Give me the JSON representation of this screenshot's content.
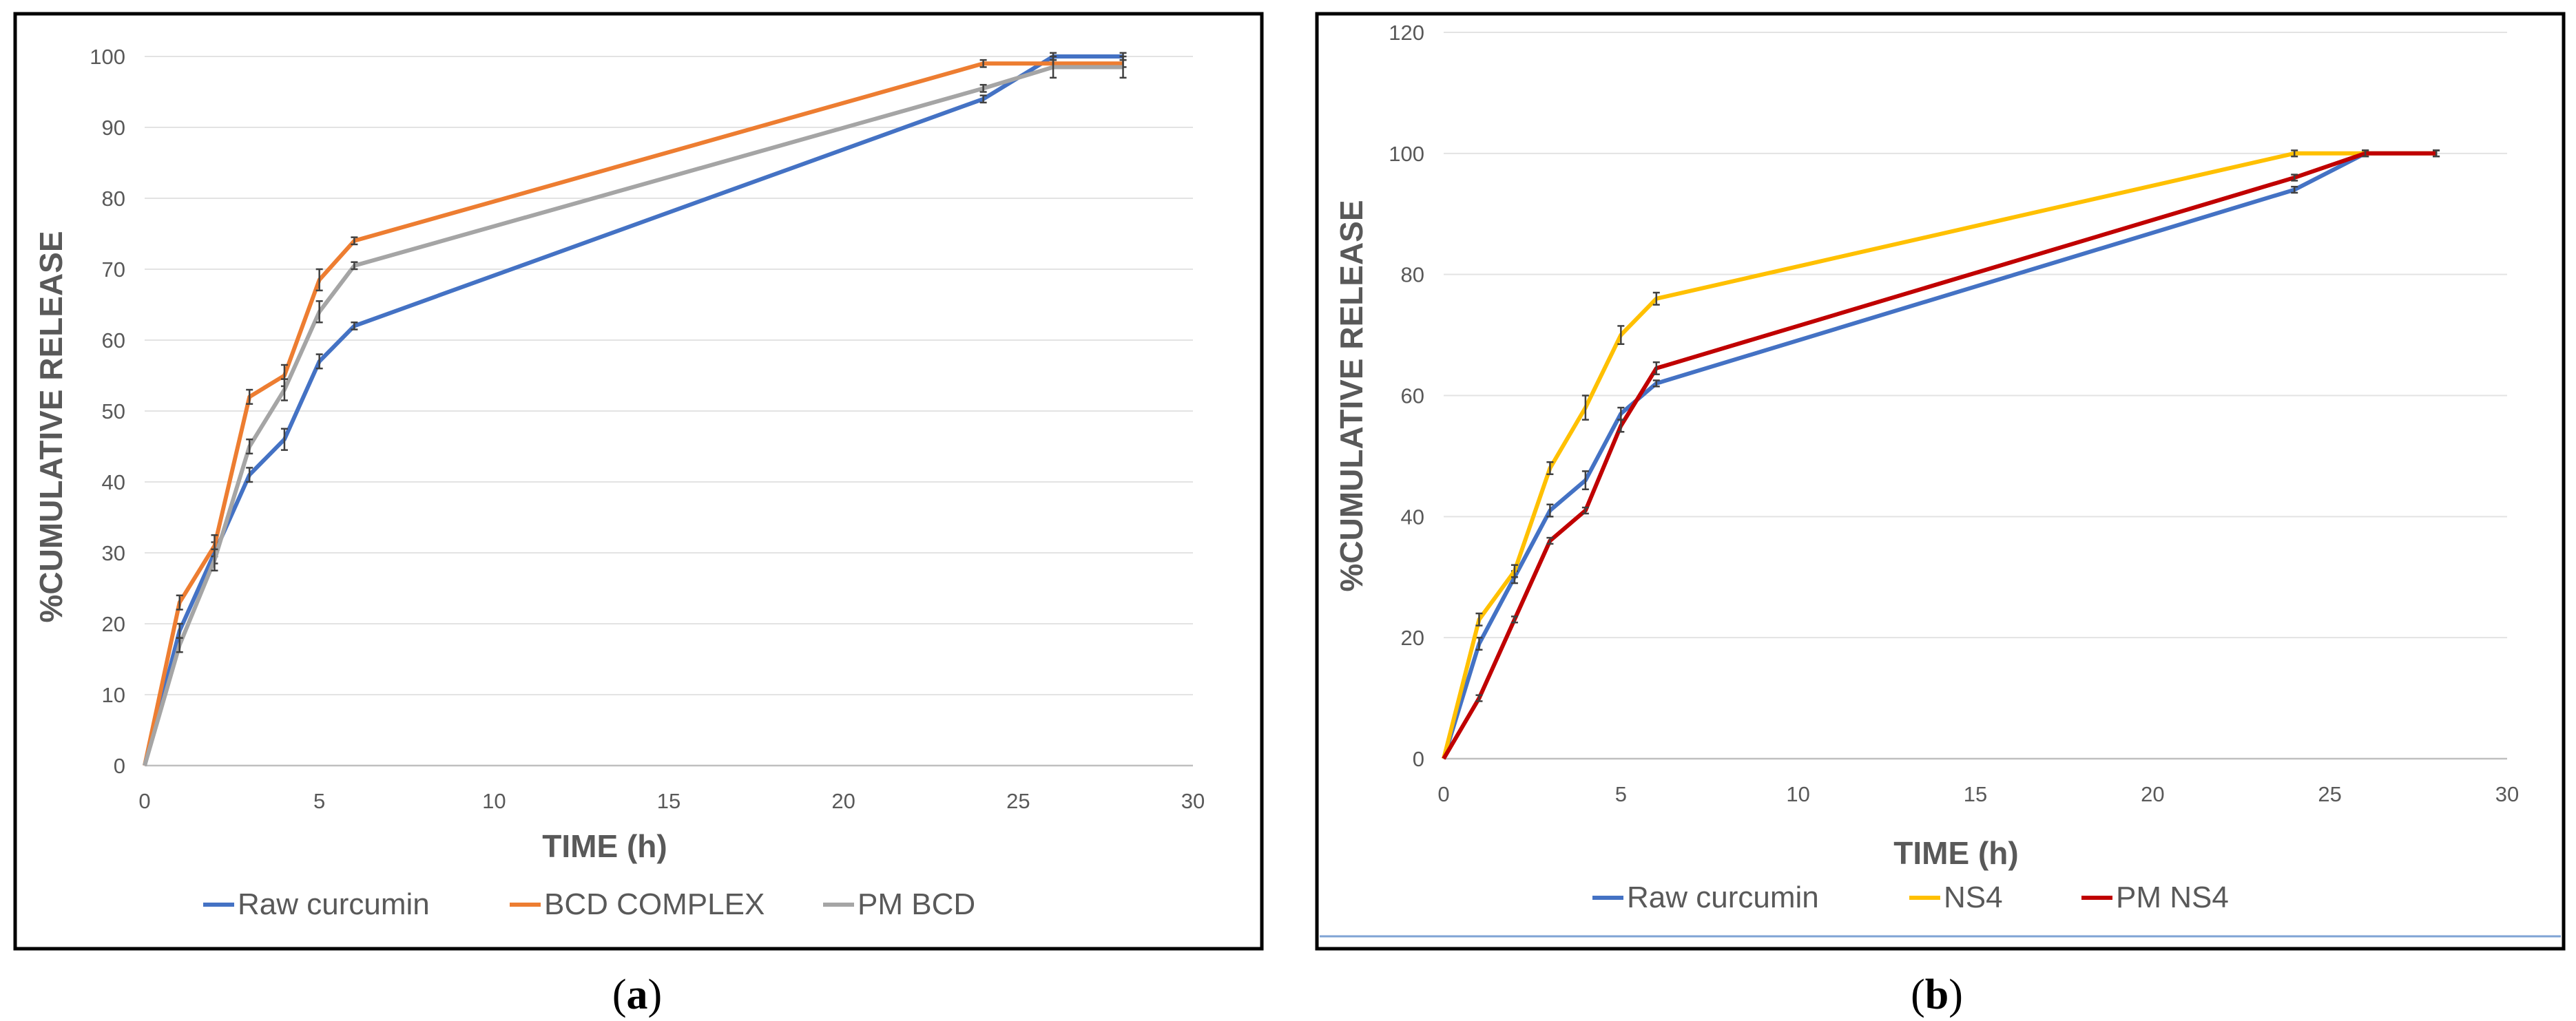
{
  "chart_data": [
    {
      "type": "line",
      "panel_caption": "a",
      "xlabel": "TIME (h)",
      "ylabel": "%CUMULATIVE RELEASE",
      "xlim": [
        0,
        30
      ],
      "ylim": [
        0,
        100
      ],
      "x_ticks": [
        0,
        5,
        10,
        15,
        20,
        25,
        30
      ],
      "y_ticks": [
        0,
        10,
        20,
        30,
        40,
        50,
        60,
        70,
        80,
        90,
        100
      ],
      "grid": true,
      "legend_position": "bottom",
      "x": [
        0,
        1,
        2,
        3,
        4,
        5,
        6,
        24,
        26,
        28
      ],
      "series": [
        {
          "name": "Raw curcumin",
          "color": "#4472C4",
          "values": [
            0,
            19,
            30,
            41,
            46,
            57,
            62,
            94,
            100,
            100
          ],
          "errors": [
            0,
            1,
            1.5,
            1,
            1.5,
            1,
            0.5,
            0.5,
            0.5,
            0.5
          ]
        },
        {
          "name": "BCD COMPLEX",
          "color": "#ED7D31",
          "values": [
            0,
            23,
            31,
            52,
            55,
            68.5,
            74,
            99,
            99,
            99
          ],
          "errors": [
            0,
            1,
            1.5,
            1,
            1.5,
            1.5,
            0.5,
            0.5,
            0.5,
            0.5
          ]
        },
        {
          "name": "PM BCD",
          "color": "#A5A5A5",
          "values": [
            0,
            17,
            29,
            45,
            53,
            64,
            70.5,
            95.5,
            98.5,
            98.5
          ],
          "errors": [
            0,
            1,
            1.5,
            1,
            1.5,
            1.5,
            0.5,
            0.5,
            1.5,
            1.5
          ]
        }
      ]
    },
    {
      "type": "line",
      "panel_caption": "b",
      "xlabel": "TIME (h)",
      "ylabel": "%CUMULATIVE RELEASE",
      "xlim": [
        0,
        30
      ],
      "ylim": [
        0,
        120
      ],
      "x_ticks": [
        0,
        5,
        10,
        15,
        20,
        25,
        30
      ],
      "y_ticks": [
        0,
        20,
        40,
        60,
        80,
        100,
        120
      ],
      "grid": true,
      "legend_position": "bottom",
      "x": [
        0,
        1,
        2,
        3,
        4,
        5,
        6,
        24,
        26,
        28
      ],
      "series": [
        {
          "name": "Raw curcumin",
          "color": "#4472C4",
          "values": [
            0,
            19,
            30,
            41,
            46,
            57,
            62,
            94,
            100,
            100
          ],
          "errors": [
            0,
            1,
            1,
            1,
            1.5,
            1,
            0.5,
            0.5,
            0.5,
            0.5
          ]
        },
        {
          "name": "NS4",
          "color": "#FFC000",
          "values": [
            0,
            23,
            31,
            48,
            58,
            70,
            76,
            100,
            100,
            100
          ],
          "errors": [
            0,
            1,
            1,
            1,
            2,
            1.5,
            1,
            0.5,
            0.5,
            0.5
          ]
        },
        {
          "name": "PM NS4",
          "color": "#C00000",
          "values": [
            0,
            10,
            23,
            36,
            41,
            55,
            64.5,
            96,
            100,
            100
          ],
          "errors": [
            0,
            0.5,
            0.5,
            0.5,
            0.5,
            1,
            1,
            0.5,
            0.5,
            0.5
          ]
        }
      ]
    }
  ]
}
